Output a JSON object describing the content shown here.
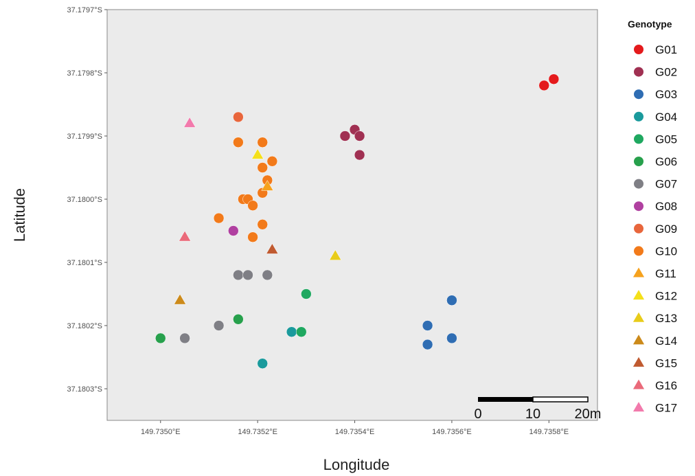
{
  "chart_data": {
    "type": "scatter",
    "xlabel": "Longitude",
    "ylabel": "Latitude",
    "xlim": [
      149.73489,
      149.7359
    ],
    "ylim": [
      -37.18035,
      -37.1797
    ],
    "x_ticks": [
      {
        "value": 149.735,
        "label": "149.7350°E"
      },
      {
        "value": 149.7352,
        "label": "149.7352°E"
      },
      {
        "value": 149.7354,
        "label": "149.7354°E"
      },
      {
        "value": 149.7356,
        "label": "149.7356°E"
      },
      {
        "value": 149.7358,
        "label": "149.7358°E"
      }
    ],
    "y_ticks": [
      {
        "value": -37.1797,
        "label": "37.1797°S"
      },
      {
        "value": -37.1798,
        "label": "37.1798°S"
      },
      {
        "value": -37.1799,
        "label": "37.1799°S"
      },
      {
        "value": -37.18,
        "label": "37.1800°S"
      },
      {
        "value": -37.1801,
        "label": "37.1801°S"
      },
      {
        "value": -37.1802,
        "label": "37.1802°S"
      },
      {
        "value": -37.1803,
        "label": "37.1803°S"
      }
    ],
    "grid": false,
    "legend": {
      "title": "Genotype",
      "position": "right",
      "entries": [
        {
          "name": "G01",
          "color": "#e41a1c"
        },
        {
          "name": "G02",
          "color": "#a03052"
        },
        {
          "name": "G03",
          "color": "#2f6db3"
        },
        {
          "name": "G04",
          "color": "#1a9a9c"
        },
        {
          "name": "G05",
          "color": "#1fa860"
        },
        {
          "name": "G06",
          "color": "#27a04c"
        },
        {
          "name": "G07",
          "color": "#7f7f85"
        },
        {
          "name": "G08",
          "color": "#b040a0"
        },
        {
          "name": "G09",
          "color": "#e8663c"
        },
        {
          "name": "G10",
          "color": "#f27a1a"
        },
        {
          "name": "G11",
          "color": "#f6a21e"
        },
        {
          "name": "G12",
          "color": "#f4e01a"
        },
        {
          "name": "G13",
          "color": "#e8cc1a"
        },
        {
          "name": "G14",
          "color": "#cc8a1a"
        },
        {
          "name": "G15",
          "color": "#c05a30"
        },
        {
          "name": "G16",
          "color": "#ea6a7a"
        },
        {
          "name": "G17",
          "color": "#f27aac"
        }
      ]
    },
    "scale_bar": {
      "labels": [
        "0",
        "10",
        "20m"
      ]
    },
    "points": [
      {
        "g": "G01",
        "x": 149.73579,
        "y": -37.17982,
        "shape": "circle"
      },
      {
        "g": "G01",
        "x": 149.73581,
        "y": -37.17981,
        "shape": "circle"
      },
      {
        "g": "G02",
        "x": 149.73538,
        "y": -37.1799,
        "shape": "circle"
      },
      {
        "g": "G02",
        "x": 149.7354,
        "y": -37.17989,
        "shape": "circle"
      },
      {
        "g": "G02",
        "x": 149.73541,
        "y": -37.1799,
        "shape": "circle"
      },
      {
        "g": "G02",
        "x": 149.73541,
        "y": -37.17993,
        "shape": "circle"
      },
      {
        "g": "G03",
        "x": 149.7356,
        "y": -37.18016,
        "shape": "circle"
      },
      {
        "g": "G03",
        "x": 149.73555,
        "y": -37.1802,
        "shape": "circle"
      },
      {
        "g": "G03",
        "x": 149.7356,
        "y": -37.18022,
        "shape": "circle"
      },
      {
        "g": "G03",
        "x": 149.73555,
        "y": -37.18023,
        "shape": "circle"
      },
      {
        "g": "G04",
        "x": 149.73527,
        "y": -37.18021,
        "shape": "circle"
      },
      {
        "g": "G04",
        "x": 149.73521,
        "y": -37.18026,
        "shape": "circle"
      },
      {
        "g": "G05",
        "x": 149.7353,
        "y": -37.18015,
        "shape": "circle"
      },
      {
        "g": "G05",
        "x": 149.73529,
        "y": -37.18021,
        "shape": "circle"
      },
      {
        "g": "G06",
        "x": 149.735,
        "y": -37.18022,
        "shape": "circle"
      },
      {
        "g": "G06",
        "x": 149.73516,
        "y": -37.18019,
        "shape": "circle"
      },
      {
        "g": "G07",
        "x": 149.73505,
        "y": -37.18022,
        "shape": "circle"
      },
      {
        "g": "G07",
        "x": 149.73512,
        "y": -37.1802,
        "shape": "circle"
      },
      {
        "g": "G07",
        "x": 149.73516,
        "y": -37.18012,
        "shape": "circle"
      },
      {
        "g": "G07",
        "x": 149.73518,
        "y": -37.18012,
        "shape": "circle"
      },
      {
        "g": "G07",
        "x": 149.73522,
        "y": -37.18012,
        "shape": "circle"
      },
      {
        "g": "G08",
        "x": 149.73515,
        "y": -37.18005,
        "shape": "circle"
      },
      {
        "g": "G09",
        "x": 149.73516,
        "y": -37.17987,
        "shape": "circle"
      },
      {
        "g": "G10",
        "x": 149.73516,
        "y": -37.17991,
        "shape": "circle"
      },
      {
        "g": "G10",
        "x": 149.73521,
        "y": -37.17991,
        "shape": "circle"
      },
      {
        "g": "G10",
        "x": 149.73523,
        "y": -37.17994,
        "shape": "circle"
      },
      {
        "g": "G10",
        "x": 149.73521,
        "y": -37.17995,
        "shape": "circle"
      },
      {
        "g": "G10",
        "x": 149.73522,
        "y": -37.17997,
        "shape": "circle"
      },
      {
        "g": "G10",
        "x": 149.73521,
        "y": -37.17999,
        "shape": "circle"
      },
      {
        "g": "G10",
        "x": 149.73517,
        "y": -37.18,
        "shape": "circle"
      },
      {
        "g": "G10",
        "x": 149.73518,
        "y": -37.18,
        "shape": "circle"
      },
      {
        "g": "G10",
        "x": 149.73519,
        "y": -37.18001,
        "shape": "circle"
      },
      {
        "g": "G10",
        "x": 149.73512,
        "y": -37.18003,
        "shape": "circle"
      },
      {
        "g": "G10",
        "x": 149.73521,
        "y": -37.18004,
        "shape": "circle"
      },
      {
        "g": "G10",
        "x": 149.73519,
        "y": -37.18006,
        "shape": "circle"
      },
      {
        "g": "G11",
        "x": 149.73522,
        "y": -37.17998,
        "shape": "triangle"
      },
      {
        "g": "G12",
        "x": 149.7352,
        "y": -37.17993,
        "shape": "triangle"
      },
      {
        "g": "G13",
        "x": 149.73536,
        "y": -37.18009,
        "shape": "triangle"
      },
      {
        "g": "G14",
        "x": 149.73504,
        "y": -37.18016,
        "shape": "triangle"
      },
      {
        "g": "G15",
        "x": 149.73523,
        "y": -37.18008,
        "shape": "triangle"
      },
      {
        "g": "G16",
        "x": 149.73505,
        "y": -37.18006,
        "shape": "triangle"
      },
      {
        "g": "G17",
        "x": 149.73506,
        "y": -37.17988,
        "shape": "triangle"
      }
    ]
  }
}
